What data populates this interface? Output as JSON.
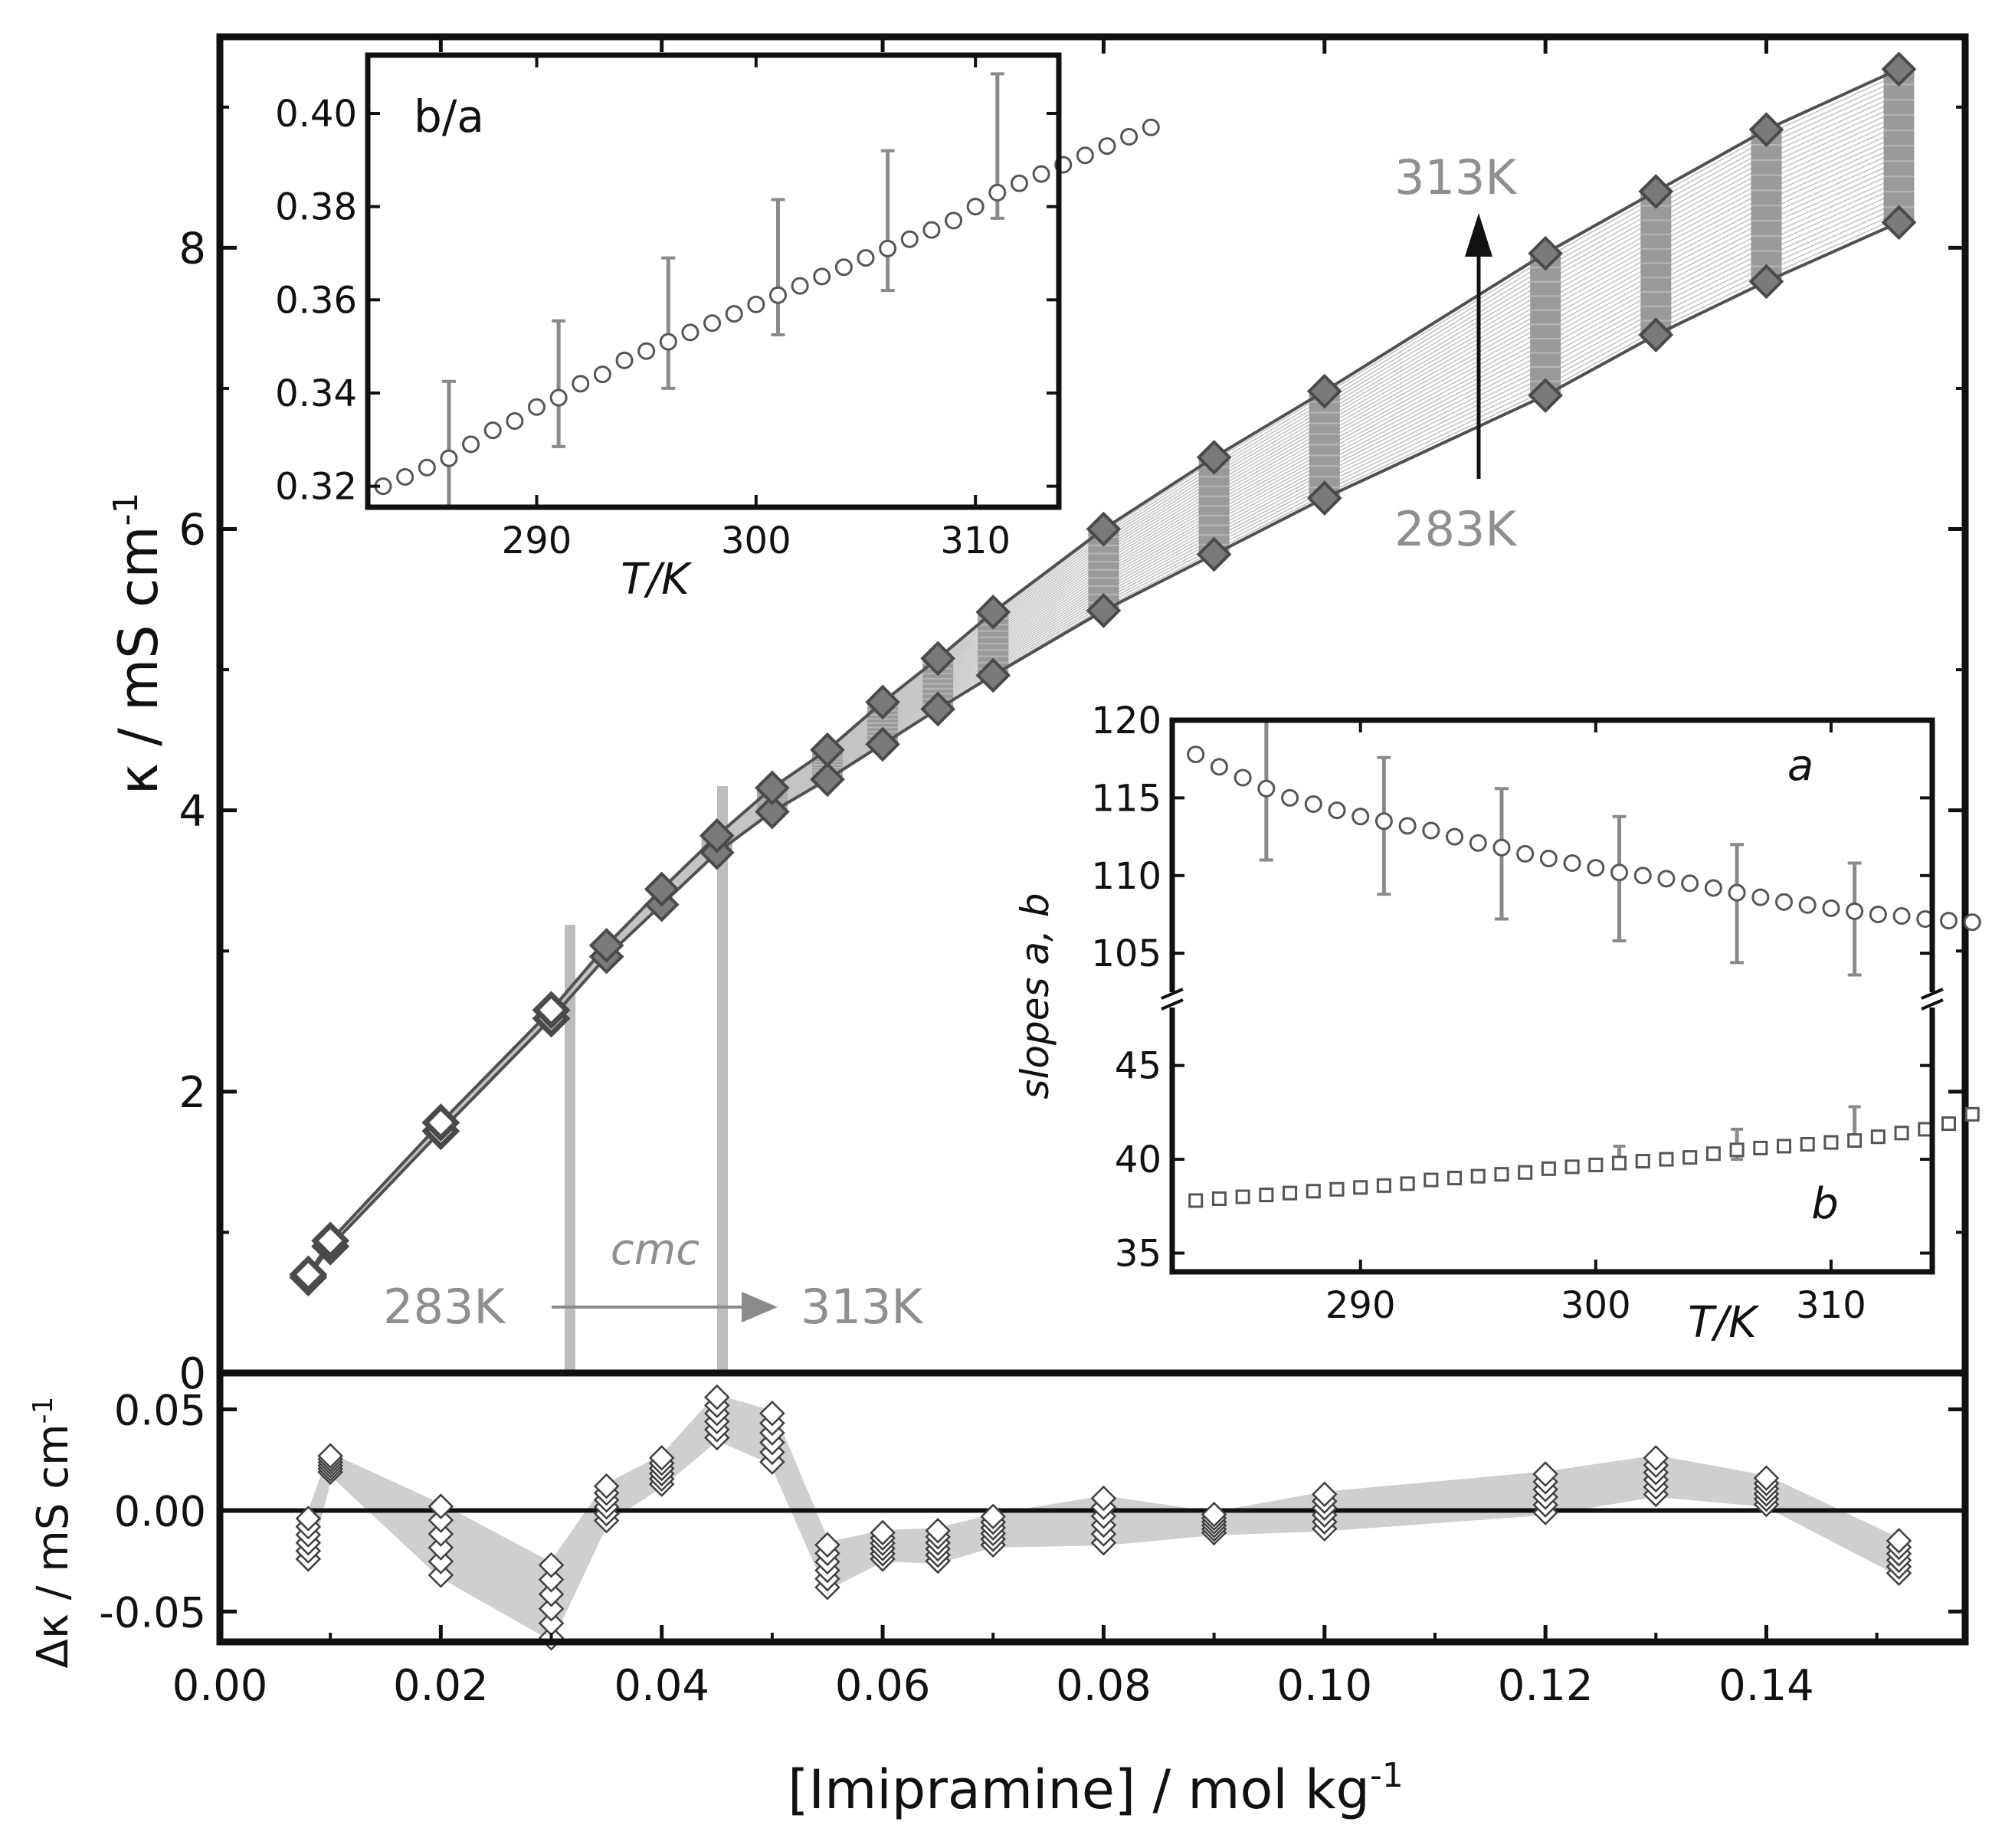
{
  "colors": {
    "axis": "#111111",
    "dark": "#505050",
    "mid": "#8a8a8a",
    "light": "#c4c4c4",
    "label_gray": "#8f8f8f",
    "fill_gray": "#9a9a9a"
  },
  "chart_data": [
    {
      "id": "main",
      "type": "line",
      "title": "",
      "xlabel": "[Imipramine] / mol kg",
      "xlabel_sup": "-1",
      "ylabel": "κ / mS cm",
      "ylabel_sup": "-1",
      "xlim": [
        0.0,
        0.158
      ],
      "ylim": [
        0,
        9.5
      ],
      "xticks": [
        0.0,
        0.02,
        0.04,
        0.06,
        0.08,
        0.1,
        0.12,
        0.14
      ],
      "xtick_labels": [
        "0.00",
        "0.02",
        "0.04",
        "0.06",
        "0.08",
        "0.10",
        "0.12",
        "0.14"
      ],
      "yticks": [
        0,
        2,
        4,
        6,
        8
      ],
      "ytick_labels": [
        "0",
        "2",
        "4",
        "6",
        "8"
      ],
      "x": [
        0.008,
        0.01,
        0.02,
        0.03,
        0.035,
        0.04,
        0.045,
        0.05,
        0.055,
        0.06,
        0.065,
        0.07,
        0.08,
        0.09,
        0.1,
        0.12,
        0.13,
        0.14,
        0.152
      ],
      "series": [
        {
          "name": "283K",
          "values": [
            0.68,
            0.9,
            1.72,
            2.52,
            2.96,
            3.33,
            3.7,
            3.99,
            4.22,
            4.47,
            4.72,
            4.96,
            5.42,
            5.82,
            6.22,
            6.95,
            7.38,
            7.76,
            8.18
          ]
        },
        {
          "name": "313K",
          "values": [
            0.7,
            0.94,
            1.78,
            2.58,
            3.04,
            3.44,
            3.82,
            4.16,
            4.43,
            4.77,
            5.08,
            5.41,
            6.0,
            6.51,
            6.98,
            7.96,
            8.4,
            8.84,
            9.27
          ]
        }
      ],
      "cmc_lines": [
        0.0317,
        0.0455
      ],
      "annotations": {
        "cmc_label": "cmc",
        "cmc_from": "283K",
        "cmc_to": "313K",
        "temp_low": "283K",
        "temp_high": "313K"
      }
    },
    {
      "id": "residuals",
      "type": "scatter",
      "ylabel": "Δκ / mS cm",
      "ylabel_sup": "-1",
      "xlim": [
        0.0,
        0.158
      ],
      "ylim": [
        -0.065,
        0.068
      ],
      "yticks": [
        -0.05,
        0.0,
        0.05
      ],
      "ytick_labels": [
        "-0.05",
        "0.00",
        "0.05"
      ],
      "x": [
        0.008,
        0.01,
        0.02,
        0.03,
        0.035,
        0.04,
        0.045,
        0.05,
        0.055,
        0.06,
        0.065,
        0.07,
        0.08,
        0.09,
        0.1,
        0.12,
        0.13,
        0.14,
        0.152
      ],
      "max": [
        -0.004,
        0.027,
        0.002,
        -0.027,
        0.012,
        0.026,
        0.056,
        0.048,
        -0.017,
        -0.011,
        -0.01,
        -0.003,
        0.006,
        -0.002,
        0.008,
        0.018,
        0.026,
        0.016,
        -0.015
      ],
      "min": [
        -0.024,
        0.019,
        -0.032,
        -0.063,
        -0.005,
        0.013,
        0.036,
        0.024,
        -0.038,
        -0.024,
        -0.025,
        -0.017,
        -0.016,
        -0.011,
        -0.009,
        -0.001,
        0.008,
        0.003,
        -0.031
      ]
    },
    {
      "id": "inset_ratio",
      "type": "scatter",
      "label": "b/a",
      "xlabel": "T/K",
      "xlim": [
        282.3,
        313.8
      ],
      "ylim": [
        0.3155,
        0.4125
      ],
      "xticks": [
        290,
        300,
        310
      ],
      "xtick_labels": [
        "290",
        "300",
        "310"
      ],
      "yticks": [
        0.32,
        0.34,
        0.36,
        0.38,
        0.4
      ],
      "ytick_labels": [
        "0.32",
        "0.34",
        "0.36",
        "0.38",
        "0.40"
      ],
      "x_start": 283,
      "x_step": 1,
      "values": [
        0.32,
        0.322,
        0.324,
        0.326,
        0.329,
        0.332,
        0.334,
        0.337,
        0.339,
        0.342,
        0.344,
        0.347,
        0.349,
        0.351,
        0.353,
        0.355,
        0.357,
        0.359,
        0.361,
        0.363,
        0.365,
        0.367,
        0.369,
        0.371,
        0.373,
        0.375,
        0.377,
        0.38,
        0.383,
        0.385,
        0.387,
        0.389,
        0.391,
        0.393,
        0.395,
        0.397
      ],
      "errorbars": [
        {
          "x": 286,
          "y": 0.329,
          "err": 0.0135
        },
        {
          "x": 291,
          "y": 0.342,
          "err": 0.0135
        },
        {
          "x": 296,
          "y": 0.355,
          "err": 0.014
        },
        {
          "x": 301,
          "y": 0.367,
          "err": 0.0145
        },
        {
          "x": 306,
          "y": 0.377,
          "err": 0.015
        },
        {
          "x": 311,
          "y": 0.393,
          "err": 0.0155
        }
      ]
    },
    {
      "id": "inset_slopes",
      "type": "scatter",
      "ylabel": "slopes a, b",
      "xlabel": "T/K",
      "xlim": [
        282.0,
        314.3
      ],
      "xticks": [
        290,
        300,
        310
      ],
      "xtick_labels": [
        "290",
        "300",
        "310"
      ],
      "ylim_top": [
        102,
        120
      ],
      "ylim_bottom": [
        34,
        48.5
      ],
      "yticks_top": [
        105,
        110,
        115,
        120
      ],
      "ytick_labels_top": [
        "105",
        "110",
        "115",
        "120"
      ],
      "yticks_bottom": [
        35,
        40,
        45
      ],
      "ytick_labels_bottom": [
        "35",
        "40",
        "45"
      ],
      "x_start": 283,
      "x_step": 1,
      "series": [
        {
          "name": "a",
          "values": [
            117.8,
            117.0,
            116.3,
            115.6,
            115.0,
            114.6,
            114.2,
            113.8,
            113.5,
            113.2,
            112.9,
            112.5,
            112.1,
            111.8,
            111.4,
            111.1,
            110.8,
            110.5,
            110.2,
            110.0,
            109.8,
            109.5,
            109.2,
            108.9,
            108.6,
            108.3,
            108.1,
            107.9,
            107.7,
            107.5,
            107.4,
            107.2,
            107.1,
            107.0
          ]
        },
        {
          "name": "b",
          "values": [
            37.8,
            37.9,
            38.0,
            38.1,
            38.2,
            38.3,
            38.4,
            38.5,
            38.6,
            38.7,
            38.9,
            39.0,
            39.1,
            39.2,
            39.3,
            39.5,
            39.6,
            39.7,
            39.8,
            39.9,
            40.0,
            40.1,
            40.3,
            40.5,
            40.6,
            40.7,
            40.8,
            40.9,
            41.0,
            41.2,
            41.4,
            41.6,
            41.9,
            42.4
          ]
        }
      ],
      "errorbars_a": [
        {
          "x": 286,
          "y": 115.6,
          "err": 4.6
        },
        {
          "x": 291,
          "y": 113.2,
          "err": 4.4
        },
        {
          "x": 296,
          "y": 111.4,
          "err": 4.2
        },
        {
          "x": 301,
          "y": 109.8,
          "err": 4.0
        },
        {
          "x": 306,
          "y": 108.2,
          "err": 3.8
        },
        {
          "x": 311,
          "y": 107.2,
          "err": 3.6
        }
      ],
      "errorbars_b": [
        {
          "x": 301,
          "y": 40.1,
          "err": 0.6
        },
        {
          "x": 306,
          "y": 40.8,
          "err": 0.8
        },
        {
          "x": 311,
          "y": 41.9,
          "err": 0.9
        }
      ],
      "label_a": "a",
      "label_b": "b"
    }
  ]
}
